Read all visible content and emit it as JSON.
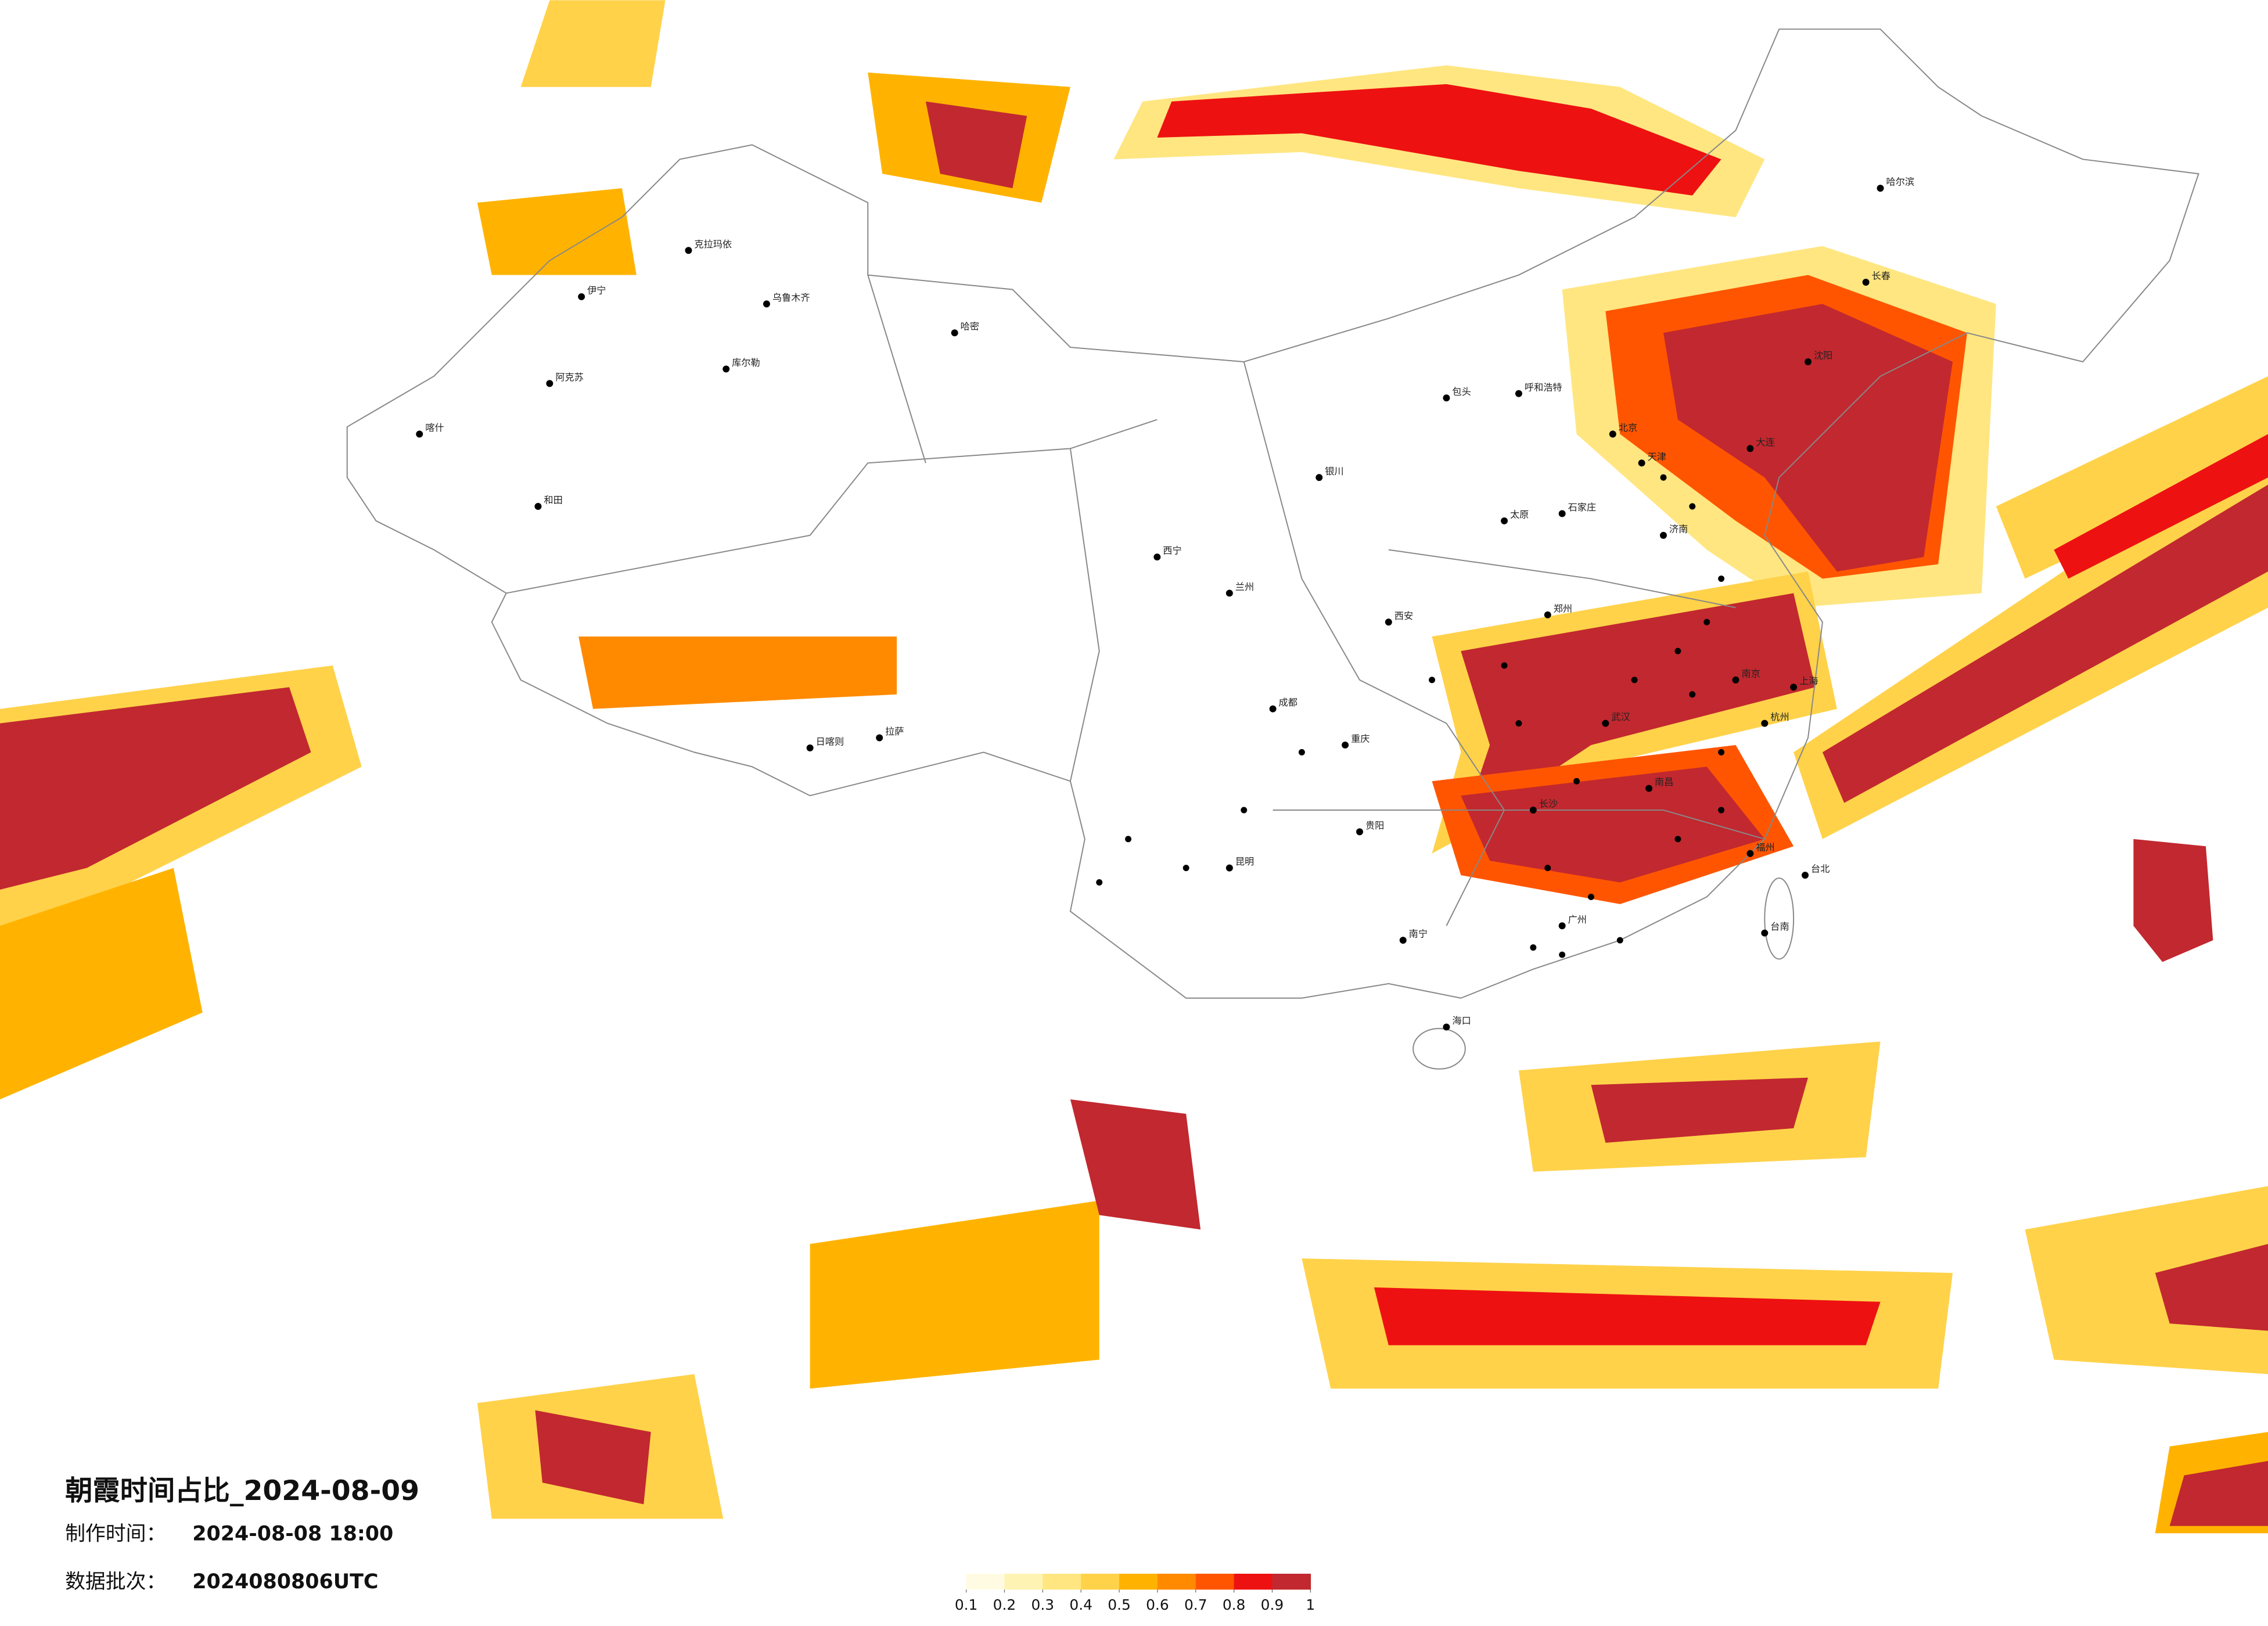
{
  "map": {
    "title": "朝霞时间占比_2024-08-09",
    "made_label": "制作时间：",
    "made_time": "2024-08-08 18:00",
    "batch_label": "数据批次：",
    "batch": "2024080806UTC",
    "legend": {
      "colors": [
        "#fffbe3",
        "#fff3b3",
        "#ffe680",
        "#ffd24a",
        "#ffb300",
        "#ff8a00",
        "#ff5500",
        "#ee1111",
        "#c2282f"
      ],
      "ticks": [
        0.1,
        0.2,
        0.3,
        0.4,
        0.5,
        0.6,
        0.7,
        0.8,
        0.9,
        1
      ]
    },
    "cities": [
      "乌鲁木齐",
      "伊宁",
      "喀什",
      "和田",
      "阿克苏",
      "库尔勒",
      "哈密",
      "克拉玛依",
      "拉萨",
      "日喀则",
      "西宁",
      "兰州",
      "银川",
      "呼和浩特",
      "包头",
      "北京",
      "天津",
      "石家庄",
      "太原",
      "西安",
      "郑州",
      "济南",
      "南京",
      "上海",
      "杭州",
      "武汉",
      "长沙",
      "南昌",
      "福州",
      "成都",
      "重庆",
      "贵阳",
      "昆明",
      "南宁",
      "广州",
      "海口",
      "哈尔滨",
      "长春",
      "沈阳",
      "大连",
      "台北",
      "台南"
    ]
  }
}
